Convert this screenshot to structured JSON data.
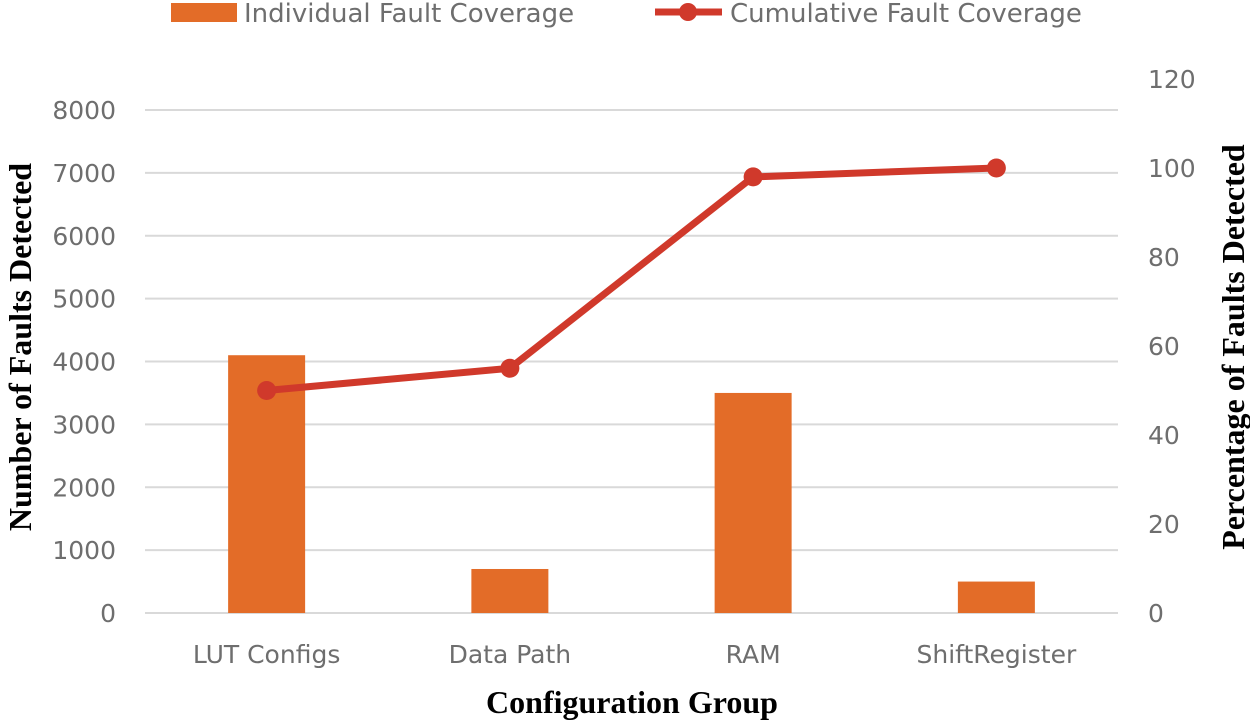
{
  "chart_data": {
    "type": "bar+line",
    "categories": [
      "LUT Configs",
      "Data Path",
      "RAM",
      "ShiftRegister"
    ],
    "series": [
      {
        "name": "Individual Fault Coverage",
        "type": "bar",
        "axis": "left",
        "values": [
          4100,
          700,
          3500,
          500
        ],
        "color": "#e36c28"
      },
      {
        "name": "Cumulative Fault Coverage",
        "type": "line",
        "axis": "right",
        "values": [
          50,
          55,
          98,
          100
        ],
        "color": "#d0392b"
      }
    ],
    "xlabel": "Configuration Group",
    "ylabel": "Number of Faults Detected",
    "y2label": "Percentage of Faults Detected",
    "ylim": [
      0,
      8000
    ],
    "y2lim": [
      0,
      120
    ],
    "yticks": [
      "0",
      "1000",
      "2000",
      "3000",
      "4000",
      "5000",
      "6000",
      "7000",
      "8000"
    ],
    "y2ticks": [
      "0",
      "20",
      "40",
      "60",
      "80",
      "100",
      "120"
    ],
    "grid": true,
    "legend_position": "top"
  }
}
